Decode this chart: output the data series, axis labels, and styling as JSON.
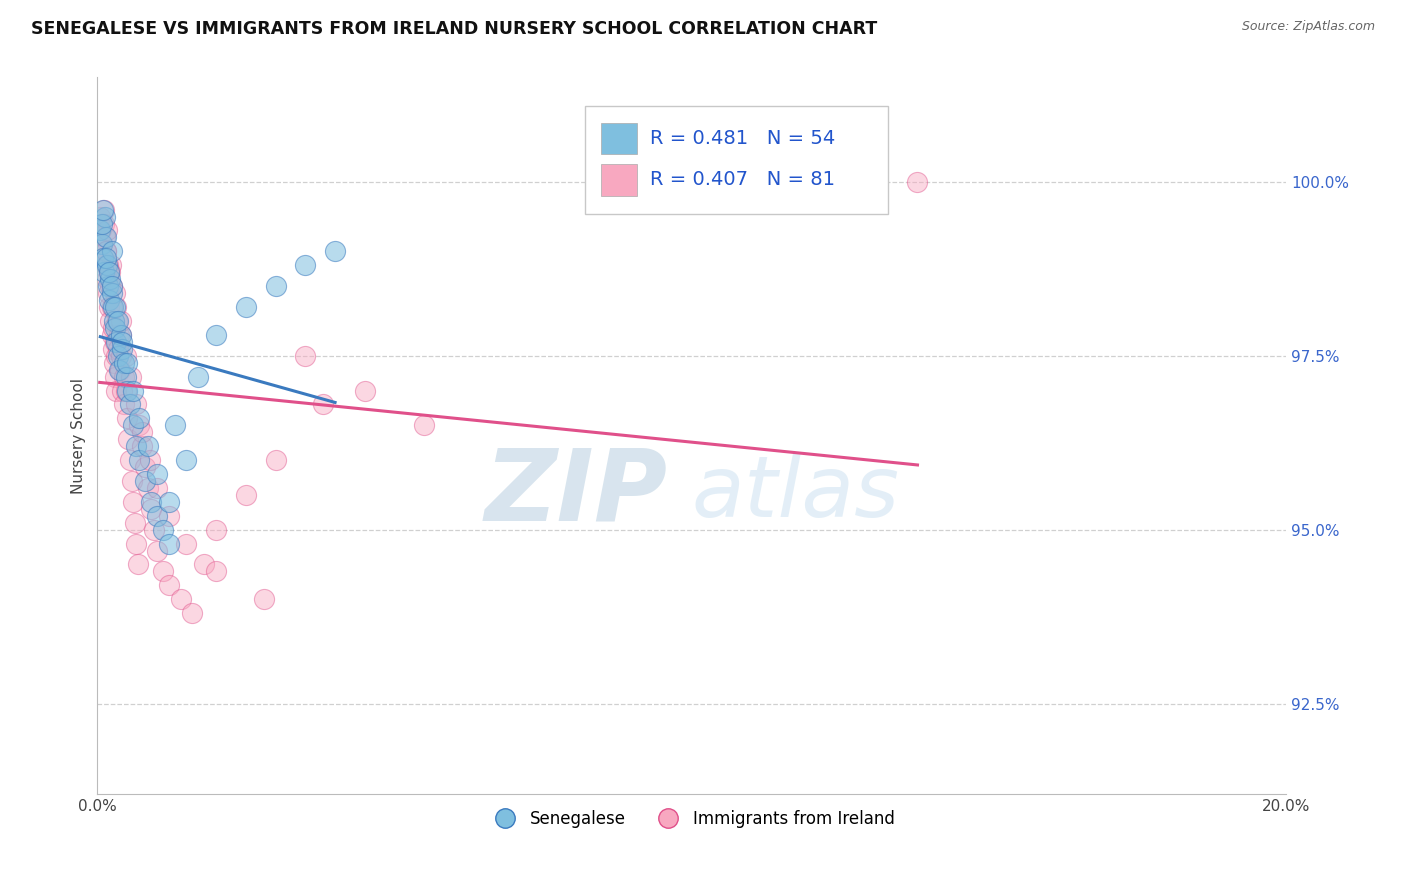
{
  "title": "SENEGALESE VS IMMIGRANTS FROM IRELAND NURSERY SCHOOL CORRELATION CHART",
  "source": "Source: ZipAtlas.com",
  "ylabel": "Nursery School",
  "y_tick_labels": [
    "92.5%",
    "95.0%",
    "97.5%",
    "100.0%"
  ],
  "y_tick_values": [
    92.5,
    95.0,
    97.5,
    100.0
  ],
  "x_lim": [
    0.0,
    20.0
  ],
  "y_lim": [
    91.2,
    101.5
  ],
  "blue_color": "#7fbfdf",
  "pink_color": "#f8a8c0",
  "blue_line_color": "#3a7abf",
  "pink_line_color": "#e0508a",
  "legend_R1": "0.481",
  "legend_N1": "54",
  "legend_R2": "0.407",
  "legend_N2": "81",
  "blue_label": "Senegalese",
  "pink_label": "Immigrants from Ireland",
  "watermark_zip": "ZIP",
  "watermark_atlas": "atlas",
  "blue_x": [
    0.05,
    0.08,
    0.1,
    0.12,
    0.13,
    0.15,
    0.16,
    0.18,
    0.2,
    0.22,
    0.24,
    0.25,
    0.27,
    0.28,
    0.3,
    0.32,
    0.35,
    0.37,
    0.4,
    0.42,
    0.45,
    0.48,
    0.5,
    0.55,
    0.6,
    0.65,
    0.7,
    0.8,
    0.9,
    1.0,
    1.1,
    1.2,
    1.3,
    1.5,
    1.7,
    2.0,
    2.5,
    3.0,
    3.5,
    4.0,
    0.15,
    0.2,
    0.25,
    0.3,
    0.35,
    0.42,
    0.5,
    0.6,
    0.7,
    0.85,
    1.0,
    1.2,
    0.08,
    0.1
  ],
  "blue_y": [
    99.3,
    99.1,
    98.9,
    98.7,
    99.5,
    99.2,
    98.8,
    98.5,
    98.3,
    98.6,
    99.0,
    98.4,
    98.2,
    98.0,
    97.9,
    97.7,
    97.5,
    97.3,
    97.8,
    97.6,
    97.4,
    97.2,
    97.0,
    96.8,
    96.5,
    96.2,
    96.0,
    95.7,
    95.4,
    95.2,
    95.0,
    94.8,
    96.5,
    96.0,
    97.2,
    97.8,
    98.2,
    98.5,
    98.8,
    99.0,
    98.9,
    98.7,
    98.5,
    98.2,
    98.0,
    97.7,
    97.4,
    97.0,
    96.6,
    96.2,
    95.8,
    95.4,
    99.4,
    99.6
  ],
  "pink_x": [
    0.04,
    0.06,
    0.08,
    0.1,
    0.11,
    0.12,
    0.13,
    0.14,
    0.15,
    0.16,
    0.17,
    0.18,
    0.19,
    0.2,
    0.21,
    0.22,
    0.23,
    0.24,
    0.25,
    0.26,
    0.27,
    0.28,
    0.29,
    0.3,
    0.31,
    0.32,
    0.33,
    0.35,
    0.37,
    0.38,
    0.4,
    0.42,
    0.44,
    0.45,
    0.48,
    0.5,
    0.52,
    0.55,
    0.58,
    0.6,
    0.63,
    0.65,
    0.68,
    0.7,
    0.75,
    0.8,
    0.85,
    0.9,
    0.95,
    1.0,
    1.1,
    1.2,
    1.4,
    1.6,
    1.8,
    2.0,
    2.5,
    3.0,
    3.8,
    0.18,
    0.25,
    0.32,
    0.4,
    0.48,
    0.56,
    0.65,
    0.75,
    0.88,
    1.0,
    1.2,
    1.5,
    2.0,
    2.8,
    3.5,
    4.5,
    5.5,
    13.8,
    0.15,
    0.22,
    0.3,
    0.4
  ],
  "pink_y": [
    99.5,
    99.3,
    99.1,
    98.9,
    99.6,
    99.4,
    99.2,
    99.0,
    98.8,
    99.3,
    98.6,
    98.4,
    98.7,
    98.2,
    98.5,
    98.0,
    98.8,
    97.8,
    98.2,
    97.6,
    97.9,
    97.4,
    97.7,
    97.2,
    97.5,
    97.0,
    98.0,
    97.6,
    97.8,
    97.3,
    97.5,
    97.0,
    97.2,
    96.8,
    97.0,
    96.6,
    96.3,
    96.0,
    95.7,
    95.4,
    95.1,
    94.8,
    94.5,
    96.5,
    96.2,
    95.9,
    95.6,
    95.3,
    95.0,
    94.7,
    94.4,
    94.2,
    94.0,
    93.8,
    94.5,
    95.0,
    95.5,
    96.0,
    96.8,
    98.8,
    98.5,
    98.2,
    97.8,
    97.5,
    97.2,
    96.8,
    96.4,
    96.0,
    95.6,
    95.2,
    94.8,
    94.4,
    94.0,
    97.5,
    97.0,
    96.5,
    100.0,
    99.0,
    98.7,
    98.4,
    98.0
  ]
}
